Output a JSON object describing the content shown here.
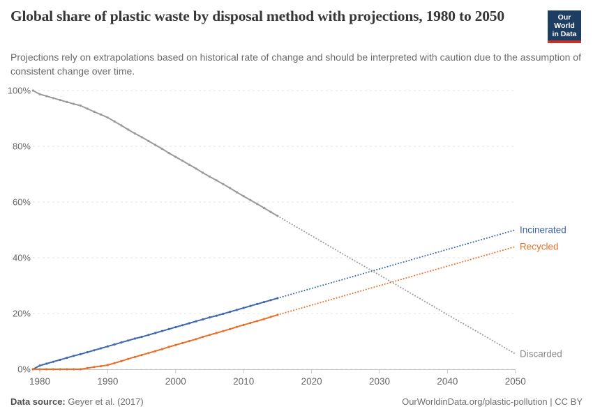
{
  "header": {
    "title": "Global share of plastic waste by disposal method with projections, 1980 to 2050",
    "subtitle": "Projections rely on extrapolations based on historical rate of change and should be interpreted with caution due to the assumption of consistent change over time.",
    "logo": {
      "line1": "Our World",
      "line2": "in Data",
      "bg_color": "#1d3d63",
      "accent_color": "#c9342a"
    }
  },
  "footer": {
    "source_label": "Data source:",
    "source_value": "Geyer et al. (2017)",
    "right_text": "OurWorldinData.org/plastic-pollution | CC BY"
  },
  "chart_data": {
    "type": "line",
    "title": "Global share of plastic waste by disposal method with projections, 1980 to 2050",
    "xlabel": "",
    "ylabel": "",
    "xlim": [
      1979,
      2050.5
    ],
    "ylim": [
      0,
      100
    ],
    "grid": true,
    "legend_position": "end-of-line-labels",
    "colors": {
      "grid": "#e2e2e2",
      "axis": "#c6c6c6",
      "tick_label": "#676767"
    },
    "x_ticks": [
      {
        "v": 1980,
        "label": "1980"
      },
      {
        "v": 1990,
        "label": "1990"
      },
      {
        "v": 2000,
        "label": "2000"
      },
      {
        "v": 2010,
        "label": "2010"
      },
      {
        "v": 2020,
        "label": "2020"
      },
      {
        "v": 2030,
        "label": "2030"
      },
      {
        "v": 2040,
        "label": "2040"
      },
      {
        "v": 2050,
        "label": "2050"
      }
    ],
    "y_ticks": [
      {
        "v": 0,
        "label": "0%"
      },
      {
        "v": 20,
        "label": "20%"
      },
      {
        "v": 40,
        "label": "40%"
      },
      {
        "v": 60,
        "label": "60%"
      },
      {
        "v": 80,
        "label": "80%"
      },
      {
        "v": 100,
        "label": "100%"
      }
    ],
    "series": [
      {
        "name": "Discarded",
        "color": "#9a9a9a",
        "label_color": "#8a8a8a",
        "historical": [
          [
            1979,
            100
          ],
          [
            1980,
            98.7
          ],
          [
            1981,
            98
          ],
          [
            1982,
            97.3
          ],
          [
            1983,
            96.6
          ],
          [
            1984,
            95.9
          ],
          [
            1985,
            95.2
          ],
          [
            1986,
            94.6
          ],
          [
            1987,
            93.5
          ],
          [
            1988,
            92.4
          ],
          [
            1989,
            91.4
          ],
          [
            1990,
            90.3
          ],
          [
            1991,
            88.9
          ],
          [
            1992,
            87.5
          ],
          [
            1993,
            86
          ],
          [
            1994,
            84.6
          ],
          [
            1995,
            83.3
          ],
          [
            1996,
            81.9
          ],
          [
            1997,
            80.5
          ],
          [
            1998,
            79.1
          ],
          [
            1999,
            77.6
          ],
          [
            2000,
            76.2
          ],
          [
            2001,
            74.8
          ],
          [
            2002,
            73.4
          ],
          [
            2003,
            72
          ],
          [
            2004,
            70.5
          ],
          [
            2005,
            69.1
          ],
          [
            2006,
            67.8
          ],
          [
            2007,
            66.4
          ],
          [
            2008,
            65
          ],
          [
            2009,
            63.5
          ],
          [
            2010,
            62.1
          ],
          [
            2011,
            60.7
          ],
          [
            2012,
            59.3
          ],
          [
            2013,
            57.9
          ],
          [
            2014,
            56.4
          ],
          [
            2015,
            55
          ]
        ],
        "projection": [
          [
            2015,
            55
          ],
          [
            2020,
            47.9
          ],
          [
            2025,
            40.8
          ],
          [
            2030,
            33.8
          ],
          [
            2035,
            26.7
          ],
          [
            2040,
            19.6
          ],
          [
            2045,
            12.6
          ],
          [
            2050,
            5.5
          ]
        ]
      },
      {
        "name": "Incinerated",
        "color": "#3d68af",
        "label_color": "#3a62a8",
        "historical": [
          [
            1979,
            0
          ],
          [
            1980,
            1.3
          ],
          [
            1981,
            2
          ],
          [
            1982,
            2.7
          ],
          [
            1983,
            3.4
          ],
          [
            1984,
            4.1
          ],
          [
            1985,
            4.8
          ],
          [
            1986,
            5.4
          ],
          [
            1987,
            6.1
          ],
          [
            1988,
            6.8
          ],
          [
            1989,
            7.5
          ],
          [
            1990,
            8.2
          ],
          [
            1991,
            8.9
          ],
          [
            1992,
            9.6
          ],
          [
            1993,
            10.3
          ],
          [
            1994,
            11
          ],
          [
            1995,
            11.6
          ],
          [
            1996,
            12.3
          ],
          [
            1997,
            13
          ],
          [
            1998,
            13.7
          ],
          [
            1999,
            14.4
          ],
          [
            2000,
            15.1
          ],
          [
            2001,
            15.8
          ],
          [
            2002,
            16.5
          ],
          [
            2003,
            17.2
          ],
          [
            2004,
            17.9
          ],
          [
            2005,
            18.6
          ],
          [
            2006,
            19.2
          ],
          [
            2007,
            19.9
          ],
          [
            2008,
            20.6
          ],
          [
            2009,
            21.3
          ],
          [
            2010,
            22
          ],
          [
            2011,
            22.7
          ],
          [
            2012,
            23.4
          ],
          [
            2013,
            24.1
          ],
          [
            2014,
            24.8
          ],
          [
            2015,
            25.5
          ]
        ],
        "projection": [
          [
            2015,
            25.5
          ],
          [
            2020,
            29
          ],
          [
            2025,
            32.5
          ],
          [
            2030,
            36
          ],
          [
            2035,
            39.5
          ],
          [
            2040,
            43
          ],
          [
            2045,
            46.5
          ],
          [
            2050,
            50
          ]
        ]
      },
      {
        "name": "Recycled",
        "color": "#e8702a",
        "label_color": "#e8702a",
        "historical": [
          [
            1979,
            0
          ],
          [
            1980,
            0
          ],
          [
            1981,
            0
          ],
          [
            1982,
            0
          ],
          [
            1983,
            0
          ],
          [
            1984,
            0
          ],
          [
            1985,
            0
          ],
          [
            1986,
            0
          ],
          [
            1987,
            0.4
          ],
          [
            1988,
            0.8
          ],
          [
            1989,
            1.1
          ],
          [
            1990,
            1.5
          ],
          [
            1991,
            2.2
          ],
          [
            1992,
            2.9
          ],
          [
            1993,
            3.7
          ],
          [
            1994,
            4.4
          ],
          [
            1995,
            5.1
          ],
          [
            1996,
            5.8
          ],
          [
            1997,
            6.5
          ],
          [
            1998,
            7.2
          ],
          [
            1999,
            8
          ],
          [
            2000,
            8.7
          ],
          [
            2001,
            9.4
          ],
          [
            2002,
            10.1
          ],
          [
            2003,
            10.8
          ],
          [
            2004,
            11.6
          ],
          [
            2005,
            12.3
          ],
          [
            2006,
            13
          ],
          [
            2007,
            13.7
          ],
          [
            2008,
            14.4
          ],
          [
            2009,
            15.2
          ],
          [
            2010,
            15.9
          ],
          [
            2011,
            16.6
          ],
          [
            2012,
            17.3
          ],
          [
            2013,
            18
          ],
          [
            2014,
            18.8
          ],
          [
            2015,
            19.5
          ]
        ],
        "projection": [
          [
            2015,
            19.5
          ],
          [
            2020,
            23
          ],
          [
            2025,
            26.5
          ],
          [
            2030,
            30
          ],
          [
            2035,
            33.5
          ],
          [
            2040,
            37
          ],
          [
            2045,
            40.5
          ],
          [
            2050,
            44
          ]
        ]
      }
    ]
  }
}
